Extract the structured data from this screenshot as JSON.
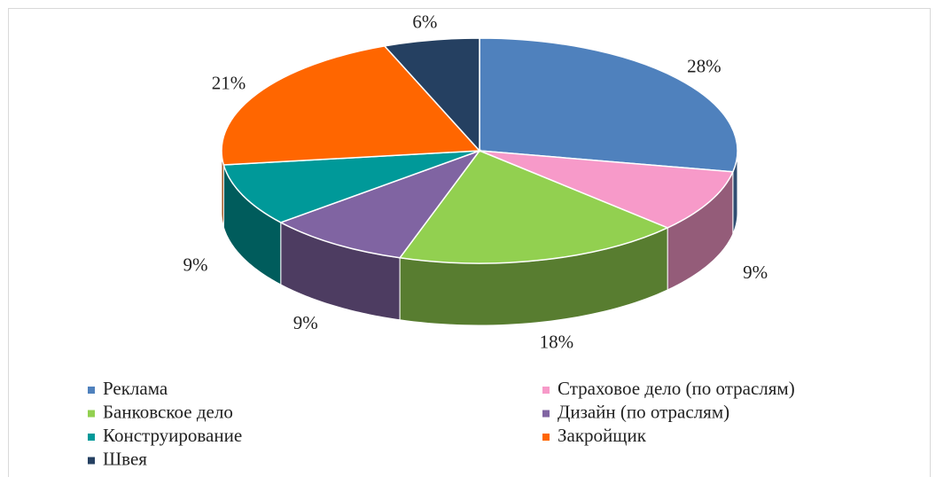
{
  "chart_data": {
    "type": "pie3d",
    "categories": [
      "Реклама",
      "Страховое дело (по отраслям)",
      "Банковское дело",
      "Дизайн (по отраслям)",
      "Конструирование",
      "Закройщик",
      "Швея"
    ],
    "values": [
      28,
      9,
      18,
      9,
      9,
      21,
      6
    ],
    "value_labels": [
      "28%",
      "9%",
      "18%",
      "9%",
      "9%",
      "21%",
      "6%"
    ],
    "colors": [
      "#4f81bd",
      "#f79ac9",
      "#92d050",
      "#8064a2",
      "#009999",
      "#ff6600",
      "#254061"
    ],
    "legend": "bottom"
  }
}
